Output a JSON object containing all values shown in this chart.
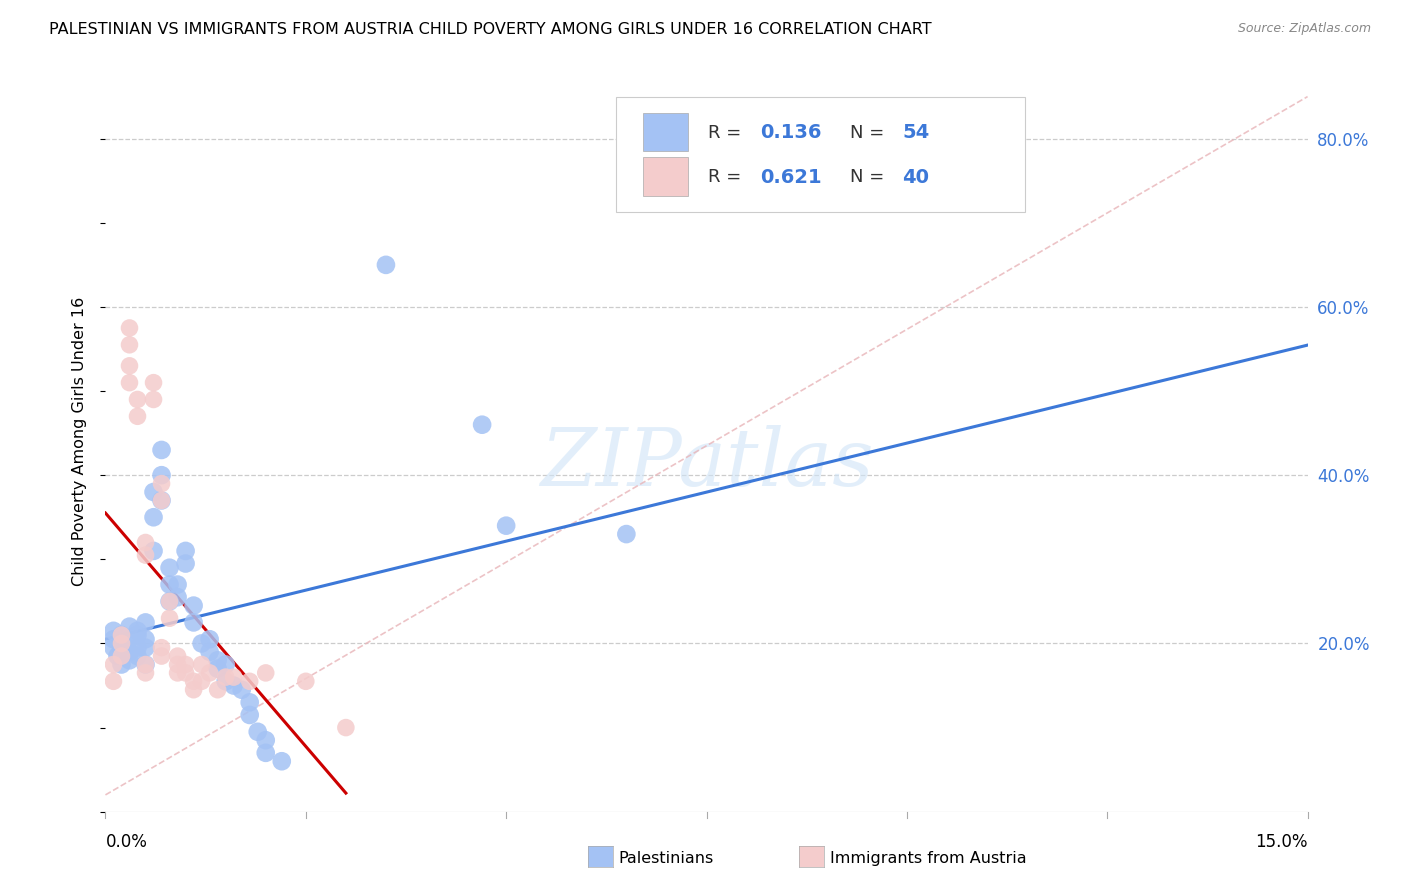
{
  "title": "PALESTINIAN VS IMMIGRANTS FROM AUSTRIA CHILD POVERTY AMONG GIRLS UNDER 16 CORRELATION CHART",
  "source": "Source: ZipAtlas.com",
  "ylabel": "Child Poverty Among Girls Under 16",
  "xlim": [
    0.0,
    0.15
  ],
  "ylim": [
    0.0,
    0.88
  ],
  "right_yticks": [
    0.2,
    0.4,
    0.6,
    0.8
  ],
  "right_yticklabels": [
    "20.0%",
    "40.0%",
    "60.0%",
    "80.0%"
  ],
  "blue_color": "#a4c2f4",
  "pink_color": "#f4cccc",
  "blue_line_color": "#3c78d8",
  "pink_line_color": "#cc0000",
  "diag_line_color": "#e8b4b8",
  "blue_R": 0.136,
  "blue_N": 54,
  "pink_R": 0.621,
  "pink_N": 40,
  "watermark": "ZIPatlas",
  "legend_label_blue": "Palestinians",
  "legend_label_pink": "Immigrants from Austria",
  "blue_points": [
    [
      0.001,
      0.205
    ],
    [
      0.001,
      0.195
    ],
    [
      0.001,
      0.215
    ],
    [
      0.0015,
      0.185
    ],
    [
      0.002,
      0.2
    ],
    [
      0.002,
      0.21
    ],
    [
      0.002,
      0.195
    ],
    [
      0.002,
      0.175
    ],
    [
      0.003,
      0.205
    ],
    [
      0.003,
      0.19
    ],
    [
      0.003,
      0.22
    ],
    [
      0.003,
      0.18
    ],
    [
      0.004,
      0.195
    ],
    [
      0.004,
      0.215
    ],
    [
      0.004,
      0.185
    ],
    [
      0.004,
      0.21
    ],
    [
      0.005,
      0.205
    ],
    [
      0.005,
      0.195
    ],
    [
      0.005,
      0.225
    ],
    [
      0.005,
      0.175
    ],
    [
      0.006,
      0.38
    ],
    [
      0.006,
      0.35
    ],
    [
      0.006,
      0.31
    ],
    [
      0.007,
      0.43
    ],
    [
      0.007,
      0.4
    ],
    [
      0.007,
      0.37
    ],
    [
      0.008,
      0.27
    ],
    [
      0.008,
      0.25
    ],
    [
      0.008,
      0.29
    ],
    [
      0.009,
      0.27
    ],
    [
      0.009,
      0.255
    ],
    [
      0.01,
      0.295
    ],
    [
      0.01,
      0.31
    ],
    [
      0.011,
      0.225
    ],
    [
      0.011,
      0.245
    ],
    [
      0.012,
      0.2
    ],
    [
      0.013,
      0.205
    ],
    [
      0.013,
      0.19
    ],
    [
      0.014,
      0.18
    ],
    [
      0.014,
      0.17
    ],
    [
      0.015,
      0.155
    ],
    [
      0.015,
      0.175
    ],
    [
      0.016,
      0.15
    ],
    [
      0.017,
      0.145
    ],
    [
      0.018,
      0.13
    ],
    [
      0.018,
      0.115
    ],
    [
      0.019,
      0.095
    ],
    [
      0.02,
      0.085
    ],
    [
      0.02,
      0.07
    ],
    [
      0.022,
      0.06
    ],
    [
      0.035,
      0.65
    ],
    [
      0.047,
      0.46
    ],
    [
      0.05,
      0.34
    ],
    [
      0.065,
      0.33
    ]
  ],
  "pink_points": [
    [
      0.001,
      0.155
    ],
    [
      0.001,
      0.175
    ],
    [
      0.002,
      0.2
    ],
    [
      0.002,
      0.21
    ],
    [
      0.002,
      0.185
    ],
    [
      0.003,
      0.51
    ],
    [
      0.003,
      0.53
    ],
    [
      0.003,
      0.555
    ],
    [
      0.003,
      0.575
    ],
    [
      0.004,
      0.47
    ],
    [
      0.004,
      0.49
    ],
    [
      0.005,
      0.305
    ],
    [
      0.005,
      0.32
    ],
    [
      0.005,
      0.175
    ],
    [
      0.005,
      0.165
    ],
    [
      0.006,
      0.51
    ],
    [
      0.006,
      0.49
    ],
    [
      0.007,
      0.39
    ],
    [
      0.007,
      0.37
    ],
    [
      0.007,
      0.195
    ],
    [
      0.007,
      0.185
    ],
    [
      0.008,
      0.25
    ],
    [
      0.008,
      0.23
    ],
    [
      0.009,
      0.185
    ],
    [
      0.009,
      0.175
    ],
    [
      0.009,
      0.165
    ],
    [
      0.01,
      0.175
    ],
    [
      0.01,
      0.165
    ],
    [
      0.011,
      0.155
    ],
    [
      0.011,
      0.145
    ],
    [
      0.012,
      0.155
    ],
    [
      0.012,
      0.175
    ],
    [
      0.013,
      0.165
    ],
    [
      0.014,
      0.145
    ],
    [
      0.015,
      0.16
    ],
    [
      0.016,
      0.16
    ],
    [
      0.018,
      0.155
    ],
    [
      0.02,
      0.165
    ],
    [
      0.025,
      0.155
    ],
    [
      0.03,
      0.1
    ]
  ]
}
